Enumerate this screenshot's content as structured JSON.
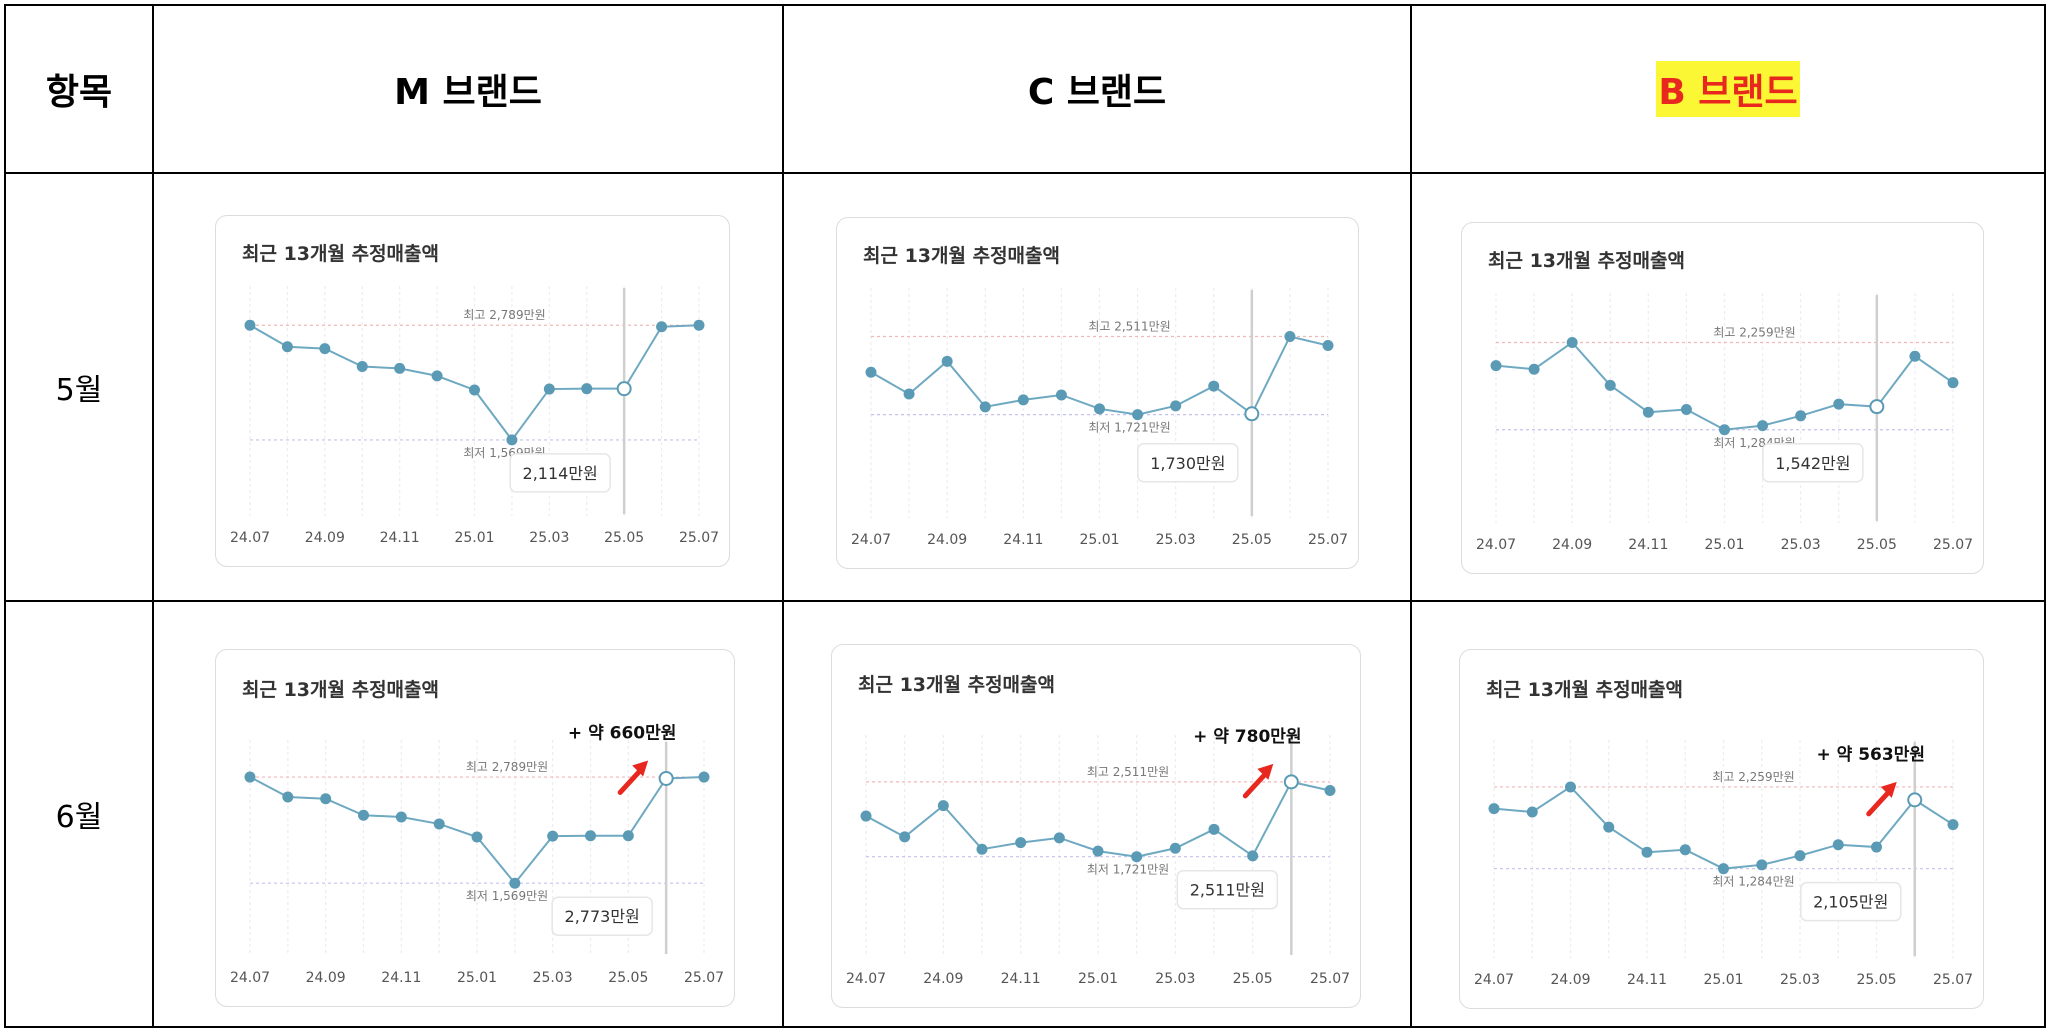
{
  "header": {
    "item_col": "항목",
    "brands": [
      {
        "label": "M 브랜드",
        "highlight": false
      },
      {
        "label": "C 브랜드",
        "highlight": false
      },
      {
        "label": "B 브랜드",
        "highlight": true
      }
    ]
  },
  "rows": [
    "5월",
    "6월"
  ],
  "colors": {
    "line": "#6ea9c1",
    "dot": "#5a9ab5",
    "max_line": "#f3b7b7",
    "min_line": "#c3c3ee",
    "cursor": "#cfcfcf",
    "arrow": "#e8281f",
    "highlight_bg": "#fbf734",
    "highlight_text": "#e8281f"
  },
  "chart_data": [
    {
      "type": "line",
      "brand": "M 브랜드",
      "month": "5월",
      "title": "최근 13개월 추정매출액",
      "categories": [
        "24.07",
        "24.08",
        "24.09",
        "24.10",
        "24.11",
        "24.12",
        "25.01",
        "25.02",
        "25.03",
        "25.04",
        "25.05",
        "25.06",
        "25.07"
      ],
      "tick_labels": [
        "24.07",
        "24.09",
        "24.11",
        "25.01",
        "25.03",
        "25.05",
        "25.07"
      ],
      "values": [
        2789,
        2560,
        2540,
        2350,
        2330,
        2250,
        2100,
        1569,
        2110,
        2114,
        2114,
        2773,
        2789
      ],
      "selected_index": 10,
      "selected_label": "2,114만원",
      "max_label": "최고 2,789만원",
      "min_label": "최저 1,569만원",
      "ylim": [
        1100,
        3100
      ]
    },
    {
      "type": "line",
      "brand": "C 브랜드",
      "month": "5월",
      "title": "최근 13개월 추정매출액",
      "categories": [
        "24.07",
        "24.08",
        "24.09",
        "24.10",
        "24.11",
        "24.12",
        "25.01",
        "25.02",
        "25.03",
        "25.04",
        "25.05",
        "25.06",
        "25.07"
      ],
      "tick_labels": [
        "24.07",
        "24.09",
        "24.11",
        "25.01",
        "25.03",
        "25.05",
        "25.07"
      ],
      "values": [
        2150,
        1930,
        2260,
        1800,
        1870,
        1920,
        1780,
        1721,
        1810,
        2010,
        1730,
        2511,
        2420
      ],
      "selected_index": 10,
      "selected_label": "1,730만원",
      "max_label": "최고 2,511만원",
      "min_label": "최저 1,721만원",
      "ylim": [
        1000,
        2900
      ]
    },
    {
      "type": "line",
      "brand": "B 브랜드",
      "month": "5월",
      "title": "최근 13개월 추정매출액",
      "categories": [
        "24.07",
        "24.08",
        "24.09",
        "24.10",
        "24.11",
        "24.12",
        "25.01",
        "25.02",
        "25.03",
        "25.04",
        "25.05",
        "25.06",
        "25.07"
      ],
      "tick_labels": [
        "24.07",
        "24.09",
        "24.11",
        "25.01",
        "25.03",
        "25.05",
        "25.07"
      ],
      "values": [
        2000,
        1960,
        2259,
        1780,
        1480,
        1510,
        1284,
        1330,
        1440,
        1570,
        1542,
        2105,
        1810
      ],
      "selected_index": 10,
      "selected_label": "1,542만원",
      "max_label": "최고 2,259만원",
      "min_label": "최저 1,284만원",
      "ylim": [
        600,
        2700
      ]
    },
    {
      "type": "line",
      "brand": "M 브랜드",
      "month": "6월",
      "title": "최근 13개월 추정매출액",
      "categories": [
        "24.07",
        "24.08",
        "24.09",
        "24.10",
        "24.11",
        "24.12",
        "25.01",
        "25.02",
        "25.03",
        "25.04",
        "25.05",
        "25.06",
        "25.07"
      ],
      "tick_labels": [
        "24.07",
        "24.09",
        "24.11",
        "25.01",
        "25.03",
        "25.05",
        "25.07"
      ],
      "values": [
        2789,
        2560,
        2540,
        2350,
        2330,
        2250,
        2100,
        1569,
        2110,
        2114,
        2114,
        2773,
        2789
      ],
      "selected_index": 11,
      "selected_label": "2,773만원",
      "max_label": "최고 2,789만원",
      "min_label": "최저 1,569만원",
      "annotation": "+ 약 660만원",
      "ylim": [
        1100,
        3100
      ]
    },
    {
      "type": "line",
      "brand": "C 브랜드",
      "month": "6월",
      "title": "최근 13개월 추정매출액",
      "categories": [
        "24.07",
        "24.08",
        "24.09",
        "24.10",
        "24.11",
        "24.12",
        "25.01",
        "25.02",
        "25.03",
        "25.04",
        "25.05",
        "25.06",
        "25.07"
      ],
      "tick_labels": [
        "24.07",
        "24.09",
        "24.11",
        "25.01",
        "25.03",
        "25.05",
        "25.07"
      ],
      "values": [
        2150,
        1930,
        2260,
        1800,
        1870,
        1920,
        1780,
        1721,
        1810,
        2010,
        1730,
        2511,
        2420
      ],
      "selected_index": 11,
      "selected_label": "2,511만원",
      "max_label": "최고 2,511만원",
      "min_label": "최저 1,721만원",
      "annotation": "+ 약 780만원",
      "ylim": [
        1000,
        2900
      ]
    },
    {
      "type": "line",
      "brand": "B 브랜드",
      "month": "6월",
      "title": "최근 13개월 추정매출액",
      "categories": [
        "24.07",
        "24.08",
        "24.09",
        "24.10",
        "24.11",
        "24.12",
        "25.01",
        "25.02",
        "25.03",
        "25.04",
        "25.05",
        "25.06",
        "25.07"
      ],
      "tick_labels": [
        "24.07",
        "24.09",
        "24.11",
        "25.01",
        "25.03",
        "25.05",
        "25.07"
      ],
      "values": [
        2000,
        1960,
        2259,
        1780,
        1480,
        1510,
        1284,
        1330,
        1440,
        1570,
        1542,
        2105,
        1810
      ],
      "selected_index": 11,
      "selected_label": "2,105만원",
      "max_label": "최고 2,259만원",
      "min_label": "최저 1,284만원",
      "annotation": "+ 약 563만원",
      "ylim": [
        600,
        2700
      ]
    }
  ]
}
